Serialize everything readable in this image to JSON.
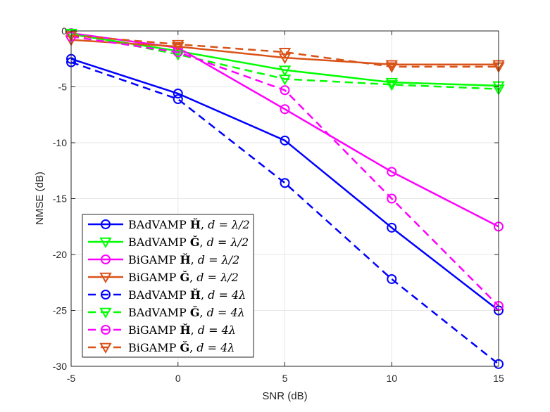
{
  "chart_data": {
    "type": "line",
    "xlabel": "SNR (dB)",
    "ylabel": "NMSE (dB)",
    "xlim": [
      -5,
      15
    ],
    "ylim": [
      -30,
      0
    ],
    "xticks": [
      -5,
      0,
      5,
      10,
      15
    ],
    "yticks": [
      0,
      -5,
      -10,
      -15,
      -20,
      -25,
      -30
    ],
    "grid": true,
    "legend_position": "bottom-left",
    "x": [
      -5,
      0,
      5,
      10,
      15
    ],
    "series": [
      {
        "name": "BAdVAMP Ȟ, d = λ/2",
        "label_alg": "BAdVAMP",
        "label_mat": "Ȟ",
        "label_cond": "d = λ/2",
        "color": "#0000ff",
        "dash": "solid",
        "marker": "circle",
        "values": [
          -2.5,
          -5.6,
          -9.8,
          -17.6,
          -25.0
        ]
      },
      {
        "name": "BAdVAMP Ǧ, d = λ/2",
        "label_alg": "BAdVAMP",
        "label_mat": "Ǧ",
        "label_cond": "d = λ/2",
        "color": "#00ff00",
        "dash": "solid",
        "marker": "triangle-down",
        "values": [
          -0.3,
          -1.8,
          -3.5,
          -4.6,
          -4.9
        ]
      },
      {
        "name": "BiGAMP Ȟ, d = λ/2",
        "label_alg": "BiGAMP",
        "label_mat": "Ȟ",
        "label_cond": "d = λ/2",
        "color": "#ff00ff",
        "dash": "solid",
        "marker": "circle",
        "values": [
          -0.2,
          -1.5,
          -7.0,
          -12.6,
          -17.5
        ]
      },
      {
        "name": "BiGAMP Ǧ, d = λ/2",
        "label_alg": "BiGAMP",
        "label_mat": "Ǧ",
        "label_cond": "d = λ/2",
        "color": "#d95319",
        "dash": "solid",
        "marker": "triangle-down",
        "values": [
          -0.8,
          -1.4,
          -2.4,
          -3.0,
          -3.0
        ]
      },
      {
        "name": "BAdVAMP Ȟ, d = 4λ",
        "label_alg": "BAdVAMP",
        "label_mat": "Ȟ",
        "label_cond": "d = 4λ",
        "color": "#0000ff",
        "dash": "dashed",
        "marker": "circle",
        "values": [
          -2.8,
          -6.1,
          -13.6,
          -22.2,
          -29.8
        ]
      },
      {
        "name": "BAdVAMP Ǧ, d = 4λ",
        "label_alg": "BAdVAMP",
        "label_mat": "Ǧ",
        "label_cond": "d = 4λ",
        "color": "#00ff00",
        "dash": "dashed",
        "marker": "triangle-down",
        "values": [
          -0.2,
          -2.1,
          -4.3,
          -4.8,
          -5.2
        ]
      },
      {
        "name": "BiGAMP Ȟ, d = 4λ",
        "label_alg": "BiGAMP",
        "label_mat": "Ȟ",
        "label_cond": "d = 4λ",
        "color": "#ff00ff",
        "dash": "dashed",
        "marker": "circle",
        "values": [
          -0.5,
          -1.9,
          -5.3,
          -15.0,
          -24.6
        ]
      },
      {
        "name": "BiGAMP Ǧ, d = 4λ",
        "label_alg": "BiGAMP",
        "label_mat": "Ǧ",
        "label_cond": "d = 4λ",
        "color": "#d95319",
        "dash": "dashed",
        "marker": "triangle-down",
        "values": [
          -0.4,
          -1.2,
          -1.9,
          -3.2,
          -3.2
        ]
      }
    ]
  }
}
